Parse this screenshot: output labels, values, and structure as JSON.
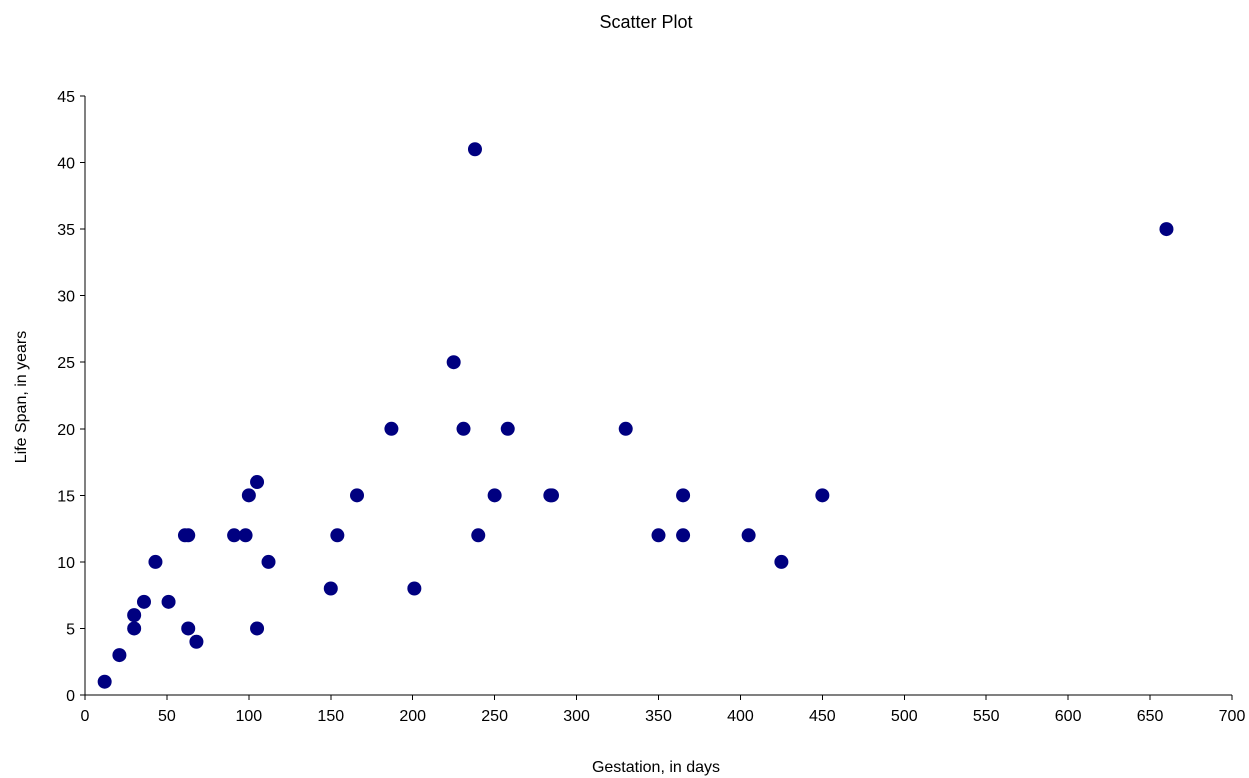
{
  "chart_data": {
    "type": "scatter",
    "title": "Scatter Plot",
    "xlabel": "Gestation, in days",
    "ylabel": "Life Span, in years",
    "xlim": [
      0,
      700
    ],
    "ylim": [
      0,
      45
    ],
    "xticks": [
      0,
      50,
      100,
      150,
      200,
      250,
      300,
      350,
      400,
      450,
      500,
      550,
      600,
      650,
      700
    ],
    "yticks": [
      0,
      5,
      10,
      15,
      20,
      25,
      30,
      35,
      40,
      45
    ],
    "grid": false,
    "legend": "none",
    "marker_color": "#000080",
    "points": [
      {
        "x": 12,
        "y": 1
      },
      {
        "x": 21,
        "y": 3
      },
      {
        "x": 30,
        "y": 5
      },
      {
        "x": 30,
        "y": 6
      },
      {
        "x": 36,
        "y": 7
      },
      {
        "x": 43,
        "y": 10
      },
      {
        "x": 51,
        "y": 7
      },
      {
        "x": 61,
        "y": 12
      },
      {
        "x": 63,
        "y": 12
      },
      {
        "x": 63,
        "y": 5
      },
      {
        "x": 68,
        "y": 4
      },
      {
        "x": 91,
        "y": 12
      },
      {
        "x": 98,
        "y": 12
      },
      {
        "x": 100,
        "y": 15
      },
      {
        "x": 105,
        "y": 16
      },
      {
        "x": 105,
        "y": 5
      },
      {
        "x": 112,
        "y": 10
      },
      {
        "x": 150,
        "y": 8
      },
      {
        "x": 154,
        "y": 12
      },
      {
        "x": 166,
        "y": 15
      },
      {
        "x": 187,
        "y": 20
      },
      {
        "x": 201,
        "y": 8
      },
      {
        "x": 225,
        "y": 25
      },
      {
        "x": 231,
        "y": 20
      },
      {
        "x": 238,
        "y": 41
      },
      {
        "x": 240,
        "y": 12
      },
      {
        "x": 250,
        "y": 15
      },
      {
        "x": 258,
        "y": 20
      },
      {
        "x": 284,
        "y": 15
      },
      {
        "x": 285,
        "y": 15
      },
      {
        "x": 330,
        "y": 20
      },
      {
        "x": 350,
        "y": 12
      },
      {
        "x": 365,
        "y": 15
      },
      {
        "x": 365,
        "y": 12
      },
      {
        "x": 405,
        "y": 12
      },
      {
        "x": 425,
        "y": 10
      },
      {
        "x": 450,
        "y": 15
      },
      {
        "x": 660,
        "y": 35
      }
    ]
  }
}
